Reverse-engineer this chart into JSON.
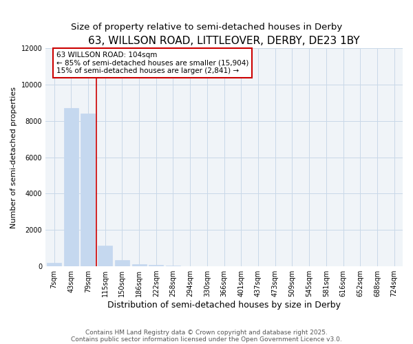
{
  "title": "63, WILLSON ROAD, LITTLEOVER, DERBY, DE23 1BY",
  "subtitle": "Size of property relative to semi-detached houses in Derby",
  "xlabel": "Distribution of semi-detached houses by size in Derby",
  "ylabel": "Number of semi-detached properties",
  "categories": [
    "7sqm",
    "43sqm",
    "79sqm",
    "115sqm",
    "150sqm",
    "186sqm",
    "222sqm",
    "258sqm",
    "294sqm",
    "330sqm",
    "366sqm",
    "401sqm",
    "437sqm",
    "473sqm",
    "509sqm",
    "545sqm",
    "581sqm",
    "616sqm",
    "652sqm",
    "688sqm",
    "724sqm"
  ],
  "values": [
    200,
    8700,
    8400,
    1150,
    350,
    100,
    75,
    55,
    0,
    0,
    0,
    0,
    0,
    0,
    0,
    0,
    0,
    0,
    0,
    0,
    0
  ],
  "bar_color": "#c5d8ef",
  "bar_edge_color": "#c5d8ef",
  "red_line_x": 2.5,
  "red_line_color": "#cc0000",
  "ylim": [
    0,
    12000
  ],
  "yticks": [
    0,
    2000,
    4000,
    6000,
    8000,
    10000,
    12000
  ],
  "annotation_text_line1": "63 WILLSON ROAD: 104sqm",
  "annotation_text_line2": "← 85% of semi-detached houses are smaller (15,904)",
  "annotation_text_line3": "15% of semi-detached houses are larger (2,841) →",
  "annotation_box_color": "#cc0000",
  "footnote1": "Contains HM Land Registry data © Crown copyright and database right 2025.",
  "footnote2": "Contains public sector information licensed under the Open Government Licence v3.0.",
  "bg_color": "#ffffff",
  "plot_bg_color": "#f0f4f8",
  "grid_color": "#c8d8e8",
  "title_fontsize": 11,
  "subtitle_fontsize": 9.5,
  "xlabel_fontsize": 9,
  "ylabel_fontsize": 8,
  "tick_fontsize": 7,
  "ann_fontsize": 7.5,
  "footnote_fontsize": 6.5
}
